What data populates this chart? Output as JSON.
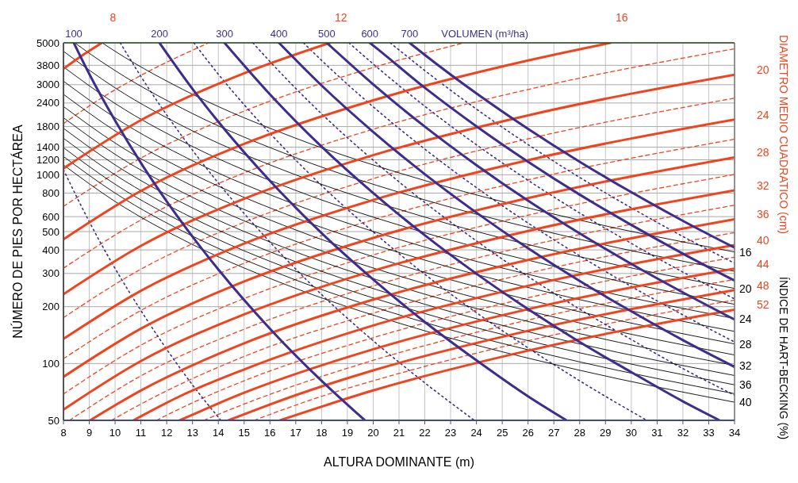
{
  "chart_data": {
    "type": "line",
    "xlabel": "ALTURA DOMINANTE (m)",
    "ylabel": "NÚMERO DE PIES POR HECTÁREA",
    "y2label": "DIAMETRO MEDIO CUADRATICO (cm)",
    "xlim": [
      8,
      34
    ],
    "xticks": [
      8,
      9,
      10,
      11,
      12,
      13,
      14,
      15,
      16,
      17,
      18,
      19,
      20,
      21,
      22,
      23,
      24,
      25,
      26,
      27,
      28,
      29,
      30,
      31,
      32,
      33,
      34
    ],
    "ylim": [
      50,
      5000
    ],
    "yticks": [
      50,
      100,
      200,
      300,
      400,
      500,
      600,
      800,
      1000,
      1200,
      1400,
      1800,
      2400,
      3000,
      3800,
      5000
    ],
    "log": "y",
    "grid": true,
    "series": [
      {
        "color": "#f0441f",
        "line_style": "dashed",
        "x": [
          8,
          9.5,
          11,
          13.63
        ],
        "values": [
          1865,
          2564,
          3360,
          5000
        ]
      },
      {
        "color": "#f0441f",
        "line_style": "dashed",
        "x": [
          8,
          11,
          15,
          20,
          23.53
        ],
        "values": [
          680,
          1225,
          2175,
          3700,
          5000
        ]
      },
      {
        "color": "#f0441f",
        "line_style": "dashed",
        "x": [
          8,
          11,
          15,
          20,
          26,
          34
        ],
        "values": [
          320,
          576,
          1023,
          1742,
          2831,
          4651
        ]
      },
      {
        "color": "#f0441f",
        "line_style": "dashed",
        "x": [
          8,
          11,
          15,
          20,
          26,
          34
        ],
        "values": [
          175,
          316,
          560,
          954,
          1550,
          2547
        ]
      },
      {
        "color": "#f0441f",
        "line_style": "dashed",
        "x": [
          8,
          11,
          15,
          20,
          26,
          34
        ],
        "values": [
          106,
          191,
          340,
          578,
          940,
          1543
        ]
      },
      {
        "color": "#f0441f",
        "line_style": "dashed",
        "x": [
          8,
          11,
          15,
          20,
          26,
          34
        ],
        "values": [
          69,
          125,
          221,
          376,
          611,
          1004
        ]
      },
      {
        "color": "#f0441f",
        "line_style": "dashed",
        "x": [
          8.23,
          11,
          15,
          20,
          26,
          34
        ],
        "values": [
          50,
          86,
          152,
          258,
          420,
          690
        ]
      },
      {
        "color": "#f0441f",
        "line_style": "dashed",
        "x": [
          9.86,
          11,
          15,
          20,
          26,
          34
        ],
        "values": [
          50,
          61,
          109,
          185,
          301,
          494
        ]
      },
      {
        "color": "#f0441f",
        "line_style": "dashed",
        "x": [
          11.6,
          13,
          15,
          20,
          26,
          34
        ],
        "values": [
          50,
          62,
          81,
          137,
          223,
          366
        ]
      },
      {
        "color": "#f0441f",
        "line_style": "dashed",
        "x": [
          13.43,
          15,
          20,
          26,
          34
        ],
        "values": [
          50,
          61,
          104,
          170,
          279
        ]
      },
      {
        "color": "#f0441f",
        "line_style": "dashed",
        "x": [
          15.38,
          18,
          20,
          26,
          34
        ],
        "values": [
          50,
          67,
          81,
          132,
          217
        ]
      },
      {
        "color": "#3d2e8c",
        "line_style": "dotted",
        "x": [
          8,
          9,
          10,
          11,
          12,
          13,
          14.1
        ],
        "values": [
          1064,
          564,
          319,
          191,
          119,
          77,
          50
        ]
      },
      {
        "color": "#3d2e8c",
        "line_style": "dotted",
        "x": [
          10.2,
          11,
          12,
          13,
          14,
          16,
          18,
          20,
          22,
          23.92
        ],
        "values": [
          5000,
          3320,
          2075,
          1349,
          904,
          440,
          232,
          132,
          79,
          50
        ]
      },
      {
        "color": "#3d2e8c",
        "line_style": "dotted",
        "x": [
          13.05,
          14,
          16,
          18,
          20,
          22,
          24,
          26,
          28,
          30.6
        ],
        "values": [
          5000,
          3410,
          1660,
          877,
          498,
          297,
          186,
          121,
          81,
          50
        ]
      },
      {
        "color": "#3d2e8c",
        "line_style": "dotted",
        "x": [
          15.34,
          16,
          18,
          20,
          22,
          24,
          26,
          28,
          30,
          32,
          34
        ],
        "values": [
          5000,
          3981,
          2104,
          1194,
          713,
          446,
          289,
          194,
          134,
          94,
          68
        ]
      },
      {
        "color": "#3d2e8c",
        "line_style": "dotted",
        "x": [
          17.3,
          18,
          20,
          22,
          24,
          26,
          28,
          30,
          32,
          34
        ],
        "values": [
          5000,
          4036,
          2291,
          1368,
          855,
          555,
          372,
          256,
          181,
          130
        ]
      },
      {
        "color": "#3d2e8c",
        "line_style": "dotted",
        "x": [
          19.06,
          20,
          22,
          24,
          26,
          28,
          30,
          32,
          34
        ],
        "values": [
          5000,
          3864,
          2307,
          1442,
          935,
          627,
          433,
          305,
          220
        ]
      },
      {
        "color": "#3d2e8c",
        "line_style": "dotted",
        "x": [
          20.66,
          22,
          24,
          26,
          28,
          30,
          32,
          34
        ],
        "values": [
          5000,
          3565,
          2228,
          1445,
          968,
          668,
          471,
          340
        ]
      },
      {
        "color": "#000000",
        "x": [
          9.5,
          10,
          13,
          17,
          22,
          28,
          34
        ],
        "values": [
          5000,
          4511,
          2669,
          1561,
          932,
          575,
          390
        ]
      },
      {
        "color": "#000000",
        "x": [
          8.44,
          9,
          10,
          13,
          17,
          22,
          28,
          34
        ],
        "values": [
          5000,
          4400,
          3564,
          2109,
          1233,
          736,
          455,
          308
        ]
      },
      {
        "color": "#000000",
        "x": [
          8,
          10,
          13,
          17,
          22,
          28,
          34
        ],
        "values": [
          4511,
          2887,
          1708,
          999,
          597,
          368,
          250
        ]
      },
      {
        "color": "#000000",
        "x": [
          8,
          10,
          13,
          17,
          22,
          28,
          34
        ],
        "values": [
          3728,
          2386,
          1412,
          826,
          493,
          304,
          206
        ]
      },
      {
        "color": "#000000",
        "x": [
          8,
          10,
          13,
          17,
          22,
          28,
          34
        ],
        "values": [
          3133,
          2005,
          1186,
          694,
          414,
          256,
          173
        ]
      },
      {
        "color": "#000000",
        "x": [
          8,
          10,
          13,
          17,
          22,
          28,
          34
        ],
        "values": [
          2669,
          1708,
          1011,
          591,
          353,
          218,
          148
        ]
      },
      {
        "color": "#000000",
        "x": [
          8,
          10,
          13,
          17,
          22,
          28,
          34
        ],
        "values": [
          2301,
          1473,
          872,
          510,
          304,
          188,
          127
        ]
      },
      {
        "color": "#000000",
        "x": [
          8,
          10,
          13,
          17,
          22,
          28,
          34
        ],
        "values": [
          2005,
          1283,
          759,
          444,
          265,
          164,
          111
        ]
      },
      {
        "color": "#000000",
        "x": [
          8,
          10,
          13,
          17,
          22,
          28,
          34
        ],
        "values": [
          1762,
          1128,
          667,
          390,
          233,
          144,
          97.6
        ]
      },
      {
        "color": "#000000",
        "x": [
          8,
          10,
          13,
          17,
          22,
          28,
          34
        ],
        "values": [
          1561,
          999,
          591,
          346,
          206,
          127,
          86.4
        ]
      },
      {
        "color": "#000000",
        "x": [
          8,
          10,
          13,
          17,
          22,
          28,
          34
        ],
        "values": [
          1392,
          891,
          527,
          308,
          184,
          114,
          77.1
        ]
      },
      {
        "color": "#000000",
        "x": [
          8,
          10,
          13,
          17,
          22,
          28,
          34
        ],
        "values": [
          1250,
          800,
          473,
          277,
          165,
          102,
          69.2
        ]
      },
      {
        "color": "#000000",
        "x": [
          8,
          10,
          13,
          17,
          22,
          28,
          34
        ],
        "values": [
          1128,
          722,
          427,
          250,
          149,
          92.1,
          62.4
        ]
      },
      {
        "color": "#f0441f",
        "x": [
          8,
          8.7,
          9.49
        ],
        "values": [
          3640,
          4260,
          5000
        ]
      },
      {
        "color": "#f0441f",
        "x": [
          8,
          11,
          15,
          18.32
        ],
        "values": [
          1080,
          1946,
          3450,
          5000
        ]
      },
      {
        "color": "#f0441f",
        "x": [
          8,
          11,
          15,
          20,
          26,
          29.2
        ],
        "values": [
          455,
          821,
          1457,
          2480,
          4030,
          5000
        ]
      },
      {
        "color": "#f0441f",
        "x": [
          8,
          11,
          15,
          20,
          26,
          34
        ],
        "values": [
          233,
          420,
          746,
          1270,
          2064,
          3390
        ]
      },
      {
        "color": "#f0441f",
        "x": [
          8,
          11,
          15,
          20,
          26,
          34
        ],
        "values": [
          135,
          243,
          432,
          735,
          1195,
          1962
        ]
      },
      {
        "color": "#f0441f",
        "x": [
          8,
          11,
          15,
          20,
          26,
          34
        ],
        "values": [
          85,
          153,
          272,
          463,
          752,
          1236
        ]
      },
      {
        "color": "#f0441f",
        "x": [
          8,
          11,
          15,
          20,
          26,
          34
        ],
        "values": [
          57,
          103,
          182,
          310,
          504,
          828
        ]
      },
      {
        "color": "#f0441f",
        "x": [
          9.03,
          11,
          15,
          20,
          26,
          34
        ],
        "values": [
          50,
          72,
          128,
          218,
          354,
          581
        ]
      },
      {
        "color": "#f0441f",
        "x": [
          10.71,
          12.5,
          15,
          20,
          26,
          34
        ],
        "values": [
          50,
          67,
          93,
          159,
          258,
          424
        ]
      },
      {
        "color": "#f0441f",
        "x": [
          12.5,
          15,
          20,
          26,
          34
        ],
        "values": [
          50,
          70,
          119,
          194,
          318
        ]
      },
      {
        "color": "#f0441f",
        "x": [
          14.39,
          17,
          20,
          26,
          34
        ],
        "values": [
          50,
          68,
          92,
          149,
          245
        ]
      },
      {
        "color": "#f0441f",
        "x": [
          16.39,
          20,
          26,
          34
        ],
        "values": [
          50,
          72,
          117,
          193
        ]
      },
      {
        "color": "#3d2e8c",
        "x": [
          8.4,
          9,
          10,
          11,
          12,
          13,
          14,
          16,
          18,
          19.68
        ],
        "values": [
          5000,
          3420,
          1936,
          1156,
          723,
          470,
          315,
          153,
          81,
          50
        ]
      },
      {
        "color": "#3d2e8c",
        "x": [
          11.72,
          13,
          14,
          16,
          18,
          20,
          22,
          24,
          26,
          27.49
        ],
        "values": [
          5000,
          2850,
          1910,
          929,
          491,
          279,
          166,
          104,
          67,
          50
        ]
      },
      {
        "color": "#3d2e8c",
        "x": [
          14.24,
          16,
          18,
          20,
          22,
          24,
          26,
          28,
          30,
          32,
          33.42
        ],
        "values": [
          5000,
          2667,
          1409,
          800,
          478,
          299,
          194,
          130,
          90,
          63,
          50
        ]
      },
      {
        "color": "#3d2e8c",
        "x": [
          16.35,
          18,
          20,
          22,
          24,
          26,
          28,
          30,
          32,
          34
        ],
        "values": [
          5000,
          2972,
          1687,
          1007,
          630,
          408,
          274,
          189,
          133,
          96
        ]
      },
      {
        "color": "#3d2e8c",
        "x": [
          18.2,
          20,
          22,
          24,
          26,
          28,
          30,
          32,
          34
        ],
        "values": [
          5000,
          3013,
          1799,
          1125,
          729,
          489,
          337,
          238,
          171
        ]
      },
      {
        "color": "#3d2e8c",
        "x": [
          19.87,
          20,
          22,
          24,
          26,
          28,
          30,
          32,
          34
        ],
        "values": [
          5000,
          4842,
          2891,
          1807,
          1172,
          785,
          542,
          382,
          275
        ]
      },
      {
        "color": "#3d2e8c",
        "x": [
          21.41,
          22,
          24,
          26,
          28,
          30,
          32,
          34
        ],
        "values": [
          5000,
          4315,
          2698,
          1750,
          1172,
          809,
          570,
          411
        ]
      }
    ],
    "annotations": [
      "VOLUMEN (m³/ha)",
      "ÍNDICE DE HART-BECKING (%)",
      {
        "text": "100",
        "x": 8.4,
        "y": 5000
      },
      {
        "text": "200",
        "x": 11.72,
        "y": 5000
      },
      {
        "text": "300",
        "x": 14.24,
        "y": 5000
      },
      {
        "text": "400",
        "x": 16.35,
        "y": 5000
      },
      {
        "text": "500",
        "x": 18.2,
        "y": 5000
      },
      {
        "text": "600",
        "x": 19.87,
        "y": 5000
      },
      {
        "text": "700",
        "x": 21.41,
        "y": 5000
      },
      {
        "text": "8",
        "x": 9.49,
        "y": 5000
      },
      {
        "text": "12",
        "x": 18.32,
        "y": 5000
      },
      {
        "text": "16",
        "x": 29.2,
        "y": 5000
      },
      {
        "text": "20",
        "x": 34,
        "y": 3390
      },
      {
        "text": "24",
        "x": 34,
        "y": 1962
      },
      {
        "text": "28",
        "x": 34,
        "y": 1236
      },
      {
        "text": "32",
        "x": 34,
        "y": 828
      },
      {
        "text": "36",
        "x": 34,
        "y": 581
      },
      {
        "text": "40",
        "x": 34,
        "y": 424
      },
      {
        "text": "44",
        "x": 34,
        "y": 318
      },
      {
        "text": "48",
        "x": 34,
        "y": 245
      },
      {
        "text": "52",
        "x": 34,
        "y": 193
      },
      {
        "text": "16",
        "x": 34,
        "y": 390
      },
      {
        "text": "20",
        "x": 34,
        "y": 250
      },
      {
        "text": "24",
        "x": 34,
        "y": 173
      },
      {
        "text": "28",
        "x": 34,
        "y": 127
      },
      {
        "text": "32",
        "x": 34,
        "y": 97.6
      },
      {
        "text": "36",
        "x": 34,
        "y": 77.1
      },
      {
        "text": "40",
        "x": 34,
        "y": 62.4
      }
    ]
  }
}
